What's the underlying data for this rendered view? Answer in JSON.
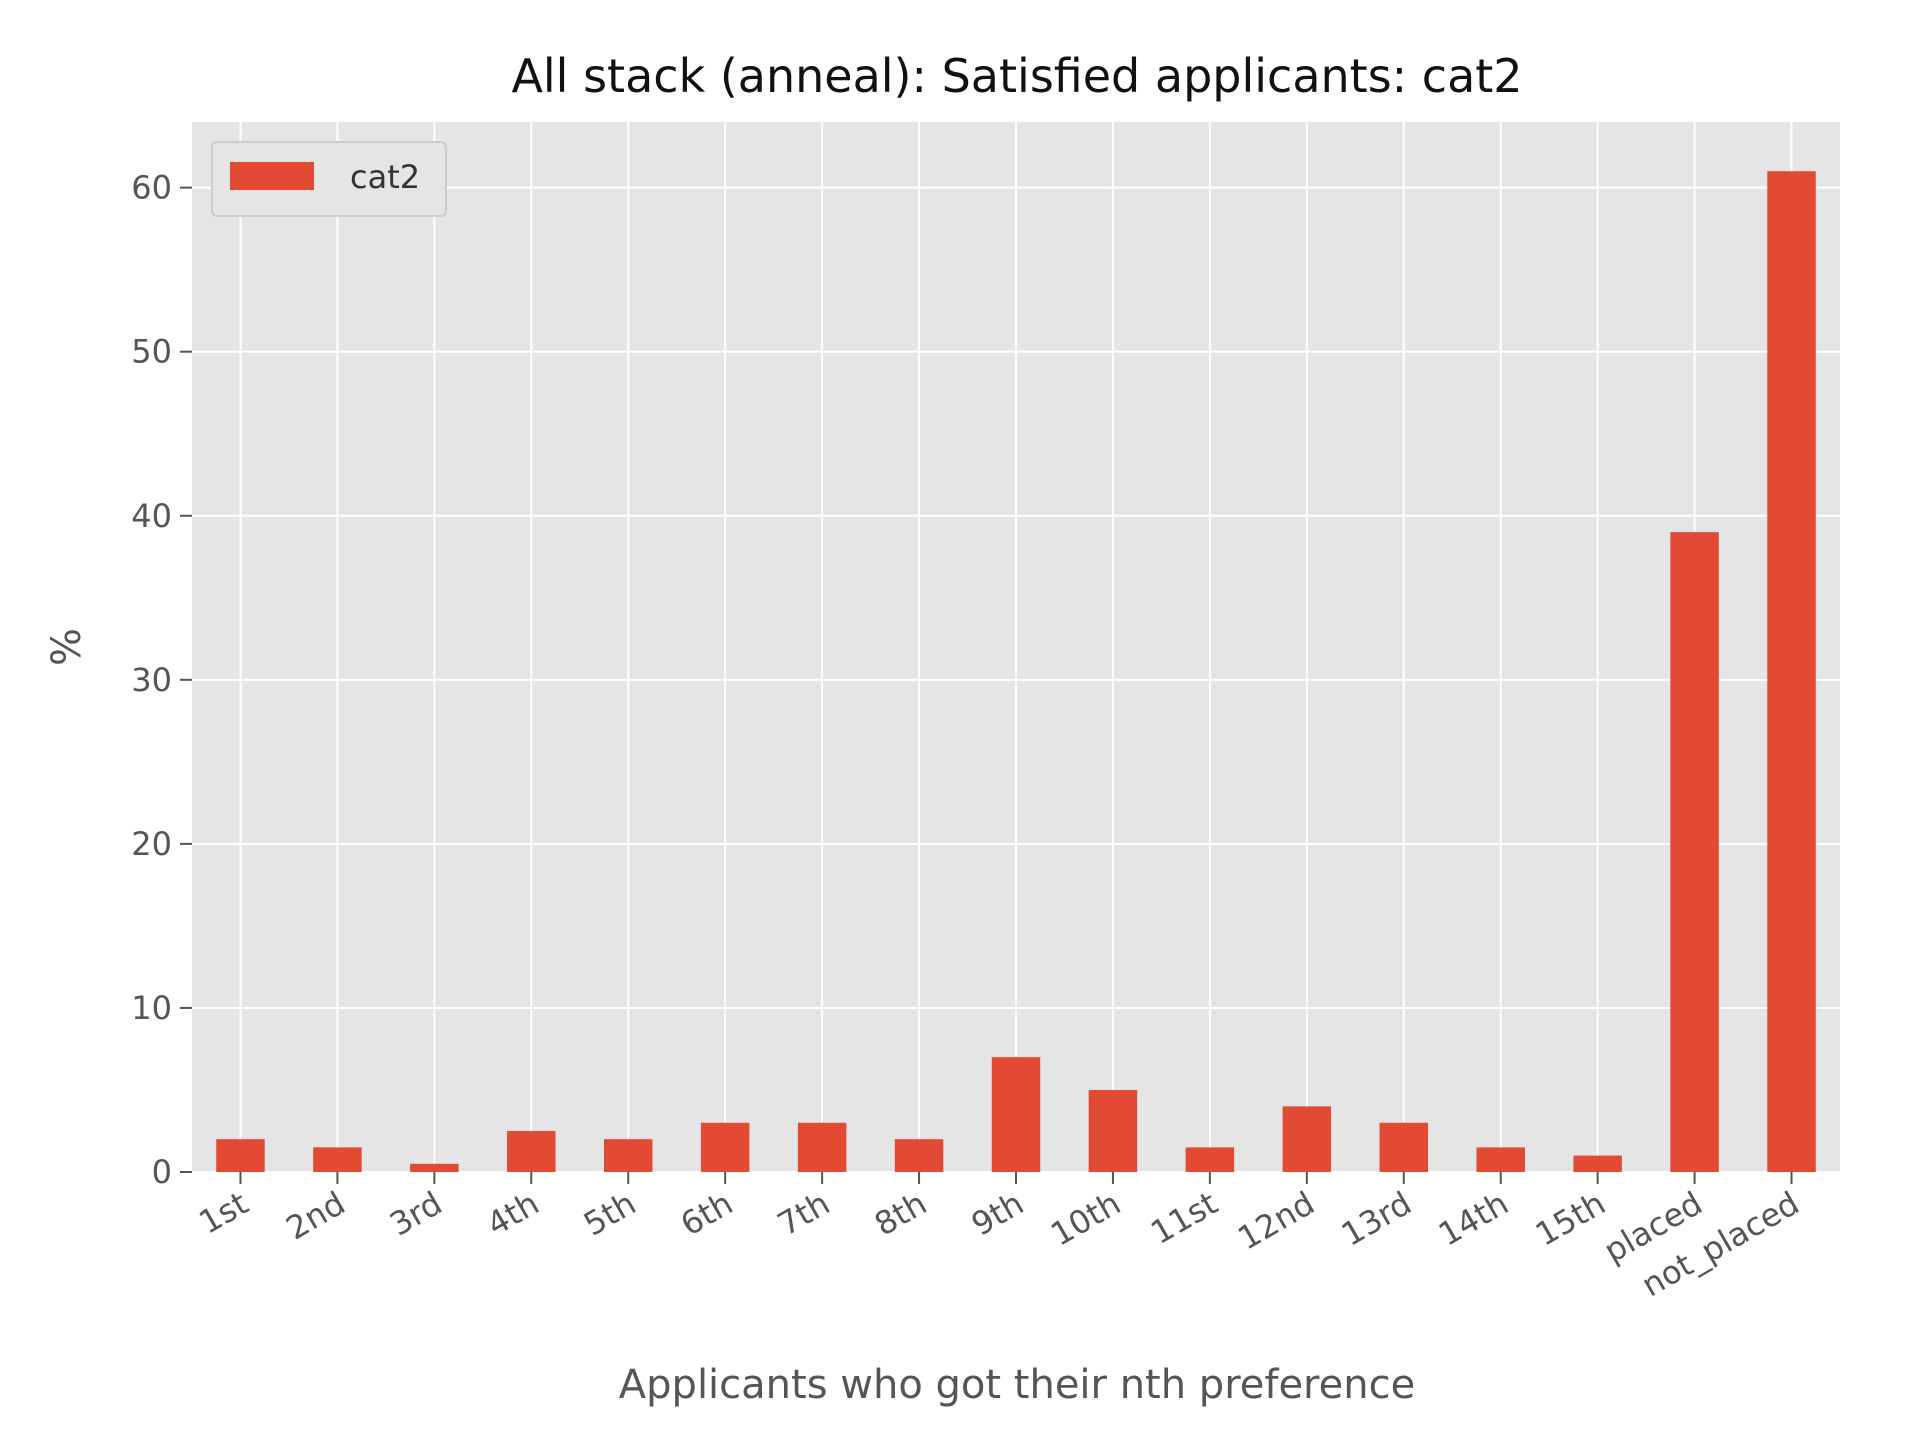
{
  "chart_data": {
    "type": "bar",
    "title": "All stack (anneal): Satisfied applicants: cat2",
    "xlabel": "Applicants who got their nth preference",
    "ylabel": "%",
    "categories": [
      "1st",
      "2nd",
      "3rd",
      "4th",
      "5th",
      "6th",
      "7th",
      "8th",
      "9th",
      "10th",
      "11st",
      "12nd",
      "13rd",
      "14th",
      "15th",
      "placed",
      "not_placed"
    ],
    "series": [
      {
        "name": "cat2",
        "values": [
          2.0,
          1.5,
          0.5,
          2.5,
          2.0,
          3.0,
          3.0,
          2.0,
          7.0,
          5.0,
          1.5,
          4.0,
          3.0,
          1.5,
          1.0,
          39.0,
          61.0
        ],
        "color": "#E24A33"
      }
    ],
    "ylim": [
      0,
      64
    ],
    "yticks": [
      "0",
      "10",
      "20",
      "30",
      "40",
      "50",
      "60"
    ],
    "grid": true,
    "legend_position": "top-left",
    "colors": {
      "plot_background": "#E5E5E5",
      "grid": "#FFFFFF",
      "bar": "#E24A33"
    }
  }
}
